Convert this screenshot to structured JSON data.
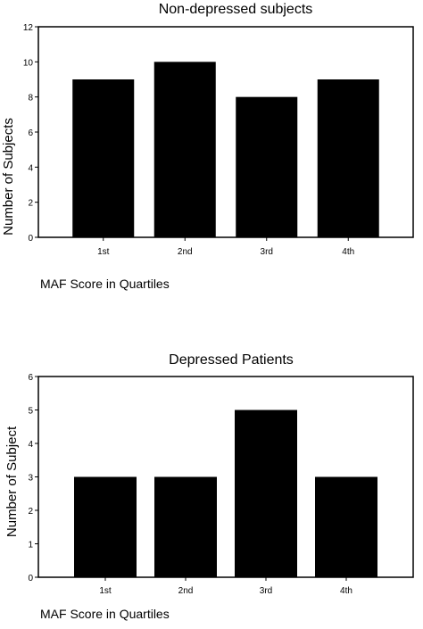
{
  "chart_data": [
    {
      "type": "bar",
      "title": "Non-depressed subjects",
      "xlabel": "MAF Score in Quartiles",
      "ylabel": "Number of Subjects",
      "categories": [
        "1st",
        "2nd",
        "3rd",
        "4th"
      ],
      "values": [
        9,
        10,
        8,
        9
      ],
      "ylim": [
        0,
        12
      ],
      "yticks": [
        0,
        2,
        4,
        6,
        8,
        10,
        12
      ],
      "bar_color": "#000000",
      "grid": false
    },
    {
      "type": "bar",
      "title": "Depressed Patients",
      "xlabel": "MAF Score in Quartiles",
      "ylabel": "Number of Subject",
      "categories": [
        "1st",
        "2nd",
        "3rd",
        "4th"
      ],
      "values": [
        3,
        3,
        5,
        3
      ],
      "ylim": [
        0,
        6
      ],
      "yticks": [
        0,
        1,
        2,
        3,
        4,
        5,
        6
      ],
      "bar_color": "#000000",
      "grid": false
    }
  ]
}
